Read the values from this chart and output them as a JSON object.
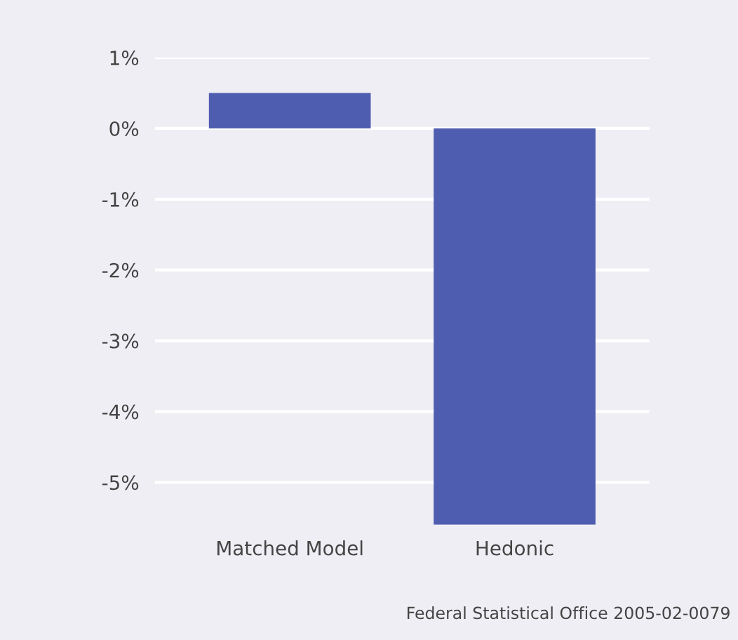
{
  "chart_data": {
    "type": "bar",
    "categories": [
      "Matched Model",
      "Hedonic"
    ],
    "values": [
      0.5,
      -5.6
    ],
    "color": "#4f5db0",
    "yticks": [
      {
        "value": 1,
        "label": "1%"
      },
      {
        "value": 0,
        "label": "0%"
      },
      {
        "value": -1,
        "label": "-1%"
      },
      {
        "value": -2,
        "label": "-2%"
      },
      {
        "value": -3,
        "label": "-3%"
      },
      {
        "value": -4,
        "label": "-4%"
      },
      {
        "value": -5,
        "label": "-5%"
      }
    ],
    "ylim": [
      -5.6,
      1
    ],
    "grid": "y",
    "annotations": [
      "Federal Statistical Office 2005-02-0079"
    ]
  }
}
